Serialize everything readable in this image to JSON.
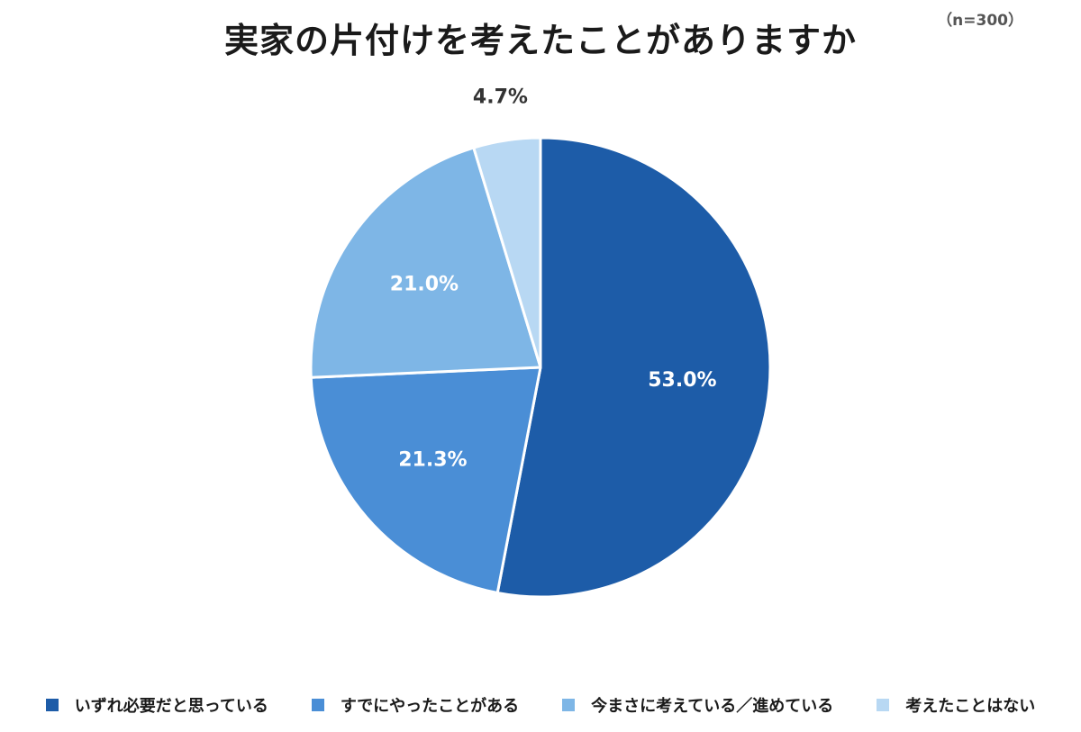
{
  "chart_data": {
    "type": "pie",
    "title": "実家の片付けを考えたことがありますか",
    "sample_note": "（n=300）",
    "categories": [
      "いずれ必要だと思っている",
      "すでにやったことがある",
      "今まさに考えている／進めている",
      "考えたことはない"
    ],
    "values": [
      53.0,
      21.3,
      21.0,
      4.7
    ],
    "labels": [
      "53.0%",
      "21.3%",
      "21.0%",
      "4.7%"
    ],
    "colors": [
      "#1d5ca8",
      "#4a8ed6",
      "#7eb6e6",
      "#b8d8f3"
    ],
    "legend_position": "bottom",
    "start": "12 o'clock",
    "direction": "clockwise"
  }
}
